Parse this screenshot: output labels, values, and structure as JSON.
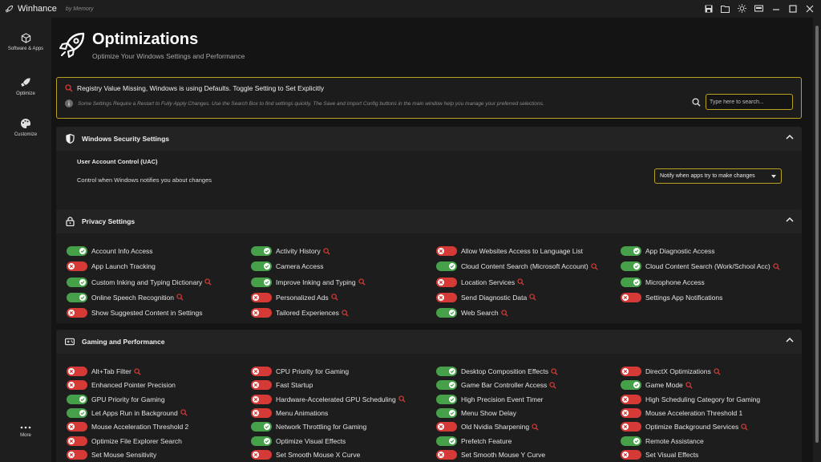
{
  "app": {
    "title": "Winhance",
    "subtitle": "by Memory"
  },
  "titlebar_icons": [
    "save-icon",
    "folder-icon",
    "theme-sun-icon",
    "remote-icon",
    "minimize-icon",
    "maximize-icon",
    "close-icon"
  ],
  "sidebar": {
    "items": [
      {
        "label": "Software & Apps",
        "icon": "cube-icon"
      },
      {
        "label": "Optimize",
        "icon": "rocket-icon"
      },
      {
        "label": "Customize",
        "icon": "palette-icon"
      }
    ],
    "more_label": "More"
  },
  "page": {
    "title": "Optimizations",
    "subtitle": "Optimize Your Windows Settings and Performance"
  },
  "info": {
    "line1": "Registry Value Missing, Windows is using Defaults. Toggle Setting to Set Explicitly",
    "line2": "Some Settings Require a Restart to Fully Apply Changes. Use the Search Box to find settings quickly. The Save and Import Config buttons in the main window help you manage your preferred selections.",
    "search_placeholder": "Type here to search..."
  },
  "security": {
    "title": "Windows Security Settings",
    "uac_title": "User Account Control (UAC)",
    "uac_desc": "Control when Windows notifies you about changes",
    "uac_value": "Notify when apps try to make changes"
  },
  "privacy": {
    "title": "Privacy Settings",
    "items": [
      {
        "label": "Account Info Access",
        "on": true,
        "flag": false
      },
      {
        "label": "Activity History",
        "on": true,
        "flag": true
      },
      {
        "label": "Allow Websites Access to Language List",
        "on": false,
        "flag": false
      },
      {
        "label": "App Diagnostic Access",
        "on": true,
        "flag": false
      },
      {
        "label": "App Launch Tracking",
        "on": false,
        "flag": false
      },
      {
        "label": "Camera Access",
        "on": true,
        "flag": false
      },
      {
        "label": "Cloud Content Search (Microsoft Account)",
        "on": true,
        "flag": true
      },
      {
        "label": "Cloud Content Search (Work/School Acc)",
        "on": true,
        "flag": true
      },
      {
        "label": "Custom Inking and Typing Dictionary",
        "on": true,
        "flag": true
      },
      {
        "label": "Improve Inking and Typing",
        "on": true,
        "flag": true
      },
      {
        "label": "Location Services",
        "on": false,
        "flag": true
      },
      {
        "label": "Microphone Access",
        "on": true,
        "flag": false
      },
      {
        "label": "Online Speech Recognition",
        "on": true,
        "flag": true
      },
      {
        "label": "Personalized Ads",
        "on": false,
        "flag": true
      },
      {
        "label": "Send Diagnostic Data",
        "on": false,
        "flag": true
      },
      {
        "label": "Settings App Notifications",
        "on": false,
        "flag": false
      },
      {
        "label": "Show Suggested Content in Settings",
        "on": false,
        "flag": false
      },
      {
        "label": "Tailored Experiences",
        "on": false,
        "flag": true
      },
      {
        "label": "Web Search",
        "on": true,
        "flag": true
      }
    ]
  },
  "gaming": {
    "title": "Gaming and Performance",
    "items": [
      {
        "label": "Alt+Tab Filter",
        "on": false,
        "flag": true
      },
      {
        "label": "CPU Priority for Gaming",
        "on": false,
        "flag": false
      },
      {
        "label": "Desktop Composition Effects",
        "on": true,
        "flag": true
      },
      {
        "label": "DirectX Optimizations",
        "on": false,
        "flag": true
      },
      {
        "label": "Enhanced Pointer Precision",
        "on": false,
        "flag": false
      },
      {
        "label": "Fast Startup",
        "on": false,
        "flag": false
      },
      {
        "label": "Game Bar Controller Access",
        "on": true,
        "flag": true
      },
      {
        "label": "Game Mode",
        "on": true,
        "flag": true
      },
      {
        "label": "GPU Priority for Gaming",
        "on": true,
        "flag": false
      },
      {
        "label": "Hardware-Accelerated GPU Scheduling",
        "on": false,
        "flag": true
      },
      {
        "label": "High Precision Event Timer",
        "on": true,
        "flag": false
      },
      {
        "label": "High Scheduling Category for Gaming",
        "on": false,
        "flag": false
      },
      {
        "label": "Let Apps Run in Background",
        "on": true,
        "flag": true
      },
      {
        "label": "Menu Animations",
        "on": false,
        "flag": false
      },
      {
        "label": "Menu Show Delay",
        "on": true,
        "flag": false
      },
      {
        "label": "Mouse Acceleration Threshold 1",
        "on": false,
        "flag": false
      },
      {
        "label": "Mouse Acceleration Threshold 2",
        "on": false,
        "flag": false
      },
      {
        "label": "Network Throttling for Gaming",
        "on": true,
        "flag": false
      },
      {
        "label": "Old Nvidia Sharpening",
        "on": false,
        "flag": true
      },
      {
        "label": "Optimize Background Services",
        "on": false,
        "flag": true
      },
      {
        "label": "Optimize File Explorer Search",
        "on": false,
        "flag": false
      },
      {
        "label": "Optimize Visual Effects",
        "on": true,
        "flag": false
      },
      {
        "label": "Prefetch Feature",
        "on": true,
        "flag": false
      },
      {
        "label": "Remote Assistance",
        "on": true,
        "flag": false
      },
      {
        "label": "Set Mouse Sensitivity",
        "on": false,
        "flag": false
      },
      {
        "label": "Set Smooth Mouse X Curve",
        "on": false,
        "flag": false
      },
      {
        "label": "Set Smooth Mouse Y Curve",
        "on": false,
        "flag": false
      },
      {
        "label": "Set Visual Effects",
        "on": false,
        "flag": false
      }
    ]
  },
  "colors": {
    "accent": "#b8a21f",
    "toggle_on": "#45a049",
    "toggle_off": "#d53a36",
    "flag": "#d53a36"
  }
}
